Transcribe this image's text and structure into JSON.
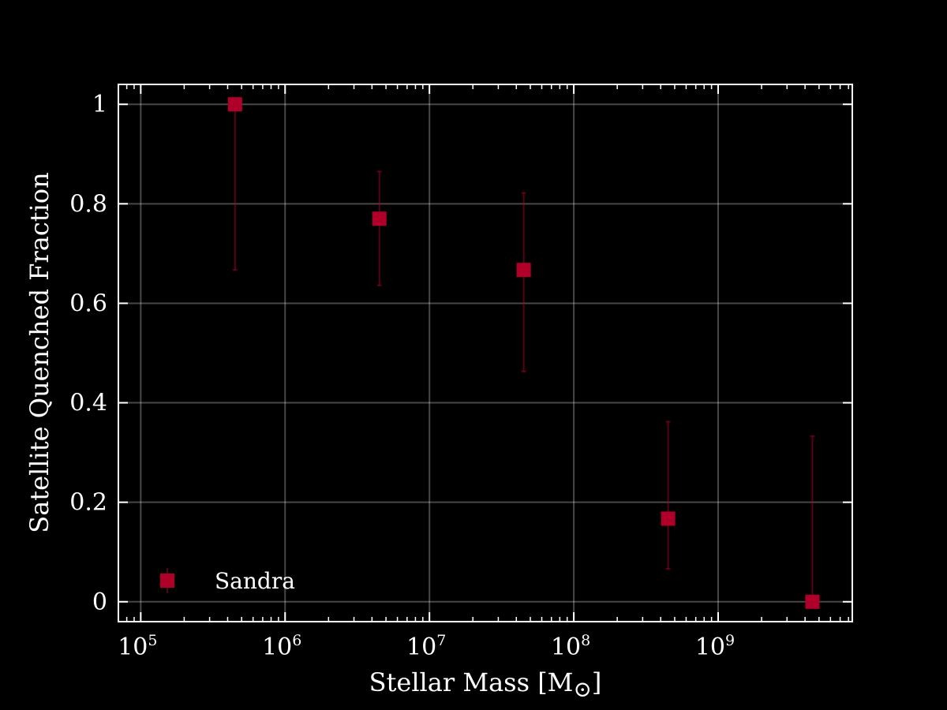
{
  "chart_data": {
    "type": "scatter",
    "title": "",
    "xlabel": "Stellar Mass [M",
    "xlabel_symbol": "⊙",
    "xlabel_close": "]",
    "ylabel": "Satellite Quenched Fraction",
    "xscale": "log",
    "xlim": [
      70000,
      8500000000
    ],
    "ylim": [
      -0.04,
      1.04
    ],
    "grid": true,
    "legend_position": "lower-left",
    "x_ticks": [
      {
        "base": "10",
        "exp": "5",
        "value": 100000
      },
      {
        "base": "10",
        "exp": "6",
        "value": 1000000
      },
      {
        "base": "10",
        "exp": "7",
        "value": 10000000
      },
      {
        "base": "10",
        "exp": "8",
        "value": 100000000
      },
      {
        "base": "10",
        "exp": "9",
        "value": 1000000000
      }
    ],
    "y_ticks": [
      {
        "label": "0",
        "value": 0
      },
      {
        "label": "0.2",
        "value": 0.2
      },
      {
        "label": "0.4",
        "value": 0.4
      },
      {
        "label": "0.6",
        "value": 0.6
      },
      {
        "label": "0.8",
        "value": 0.8
      },
      {
        "label": "1",
        "value": 1
      }
    ],
    "series": [
      {
        "name": "Sandra",
        "color": "#b0002a",
        "marker": "square",
        "points": [
          {
            "x": 450000,
            "y": 1.0,
            "ylo": 0.667,
            "yhi": 1.0
          },
          {
            "x": 4500000,
            "y": 0.77,
            "ylo": 0.636,
            "yhi": 0.865
          },
          {
            "x": 45000000,
            "y": 0.667,
            "ylo": 0.463,
            "yhi": 0.822
          },
          {
            "x": 450000000,
            "y": 0.167,
            "ylo": 0.066,
            "yhi": 0.362
          },
          {
            "x": 4500000000,
            "y": 0.0,
            "ylo": 0.0,
            "yhi": 0.333
          }
        ]
      }
    ]
  }
}
